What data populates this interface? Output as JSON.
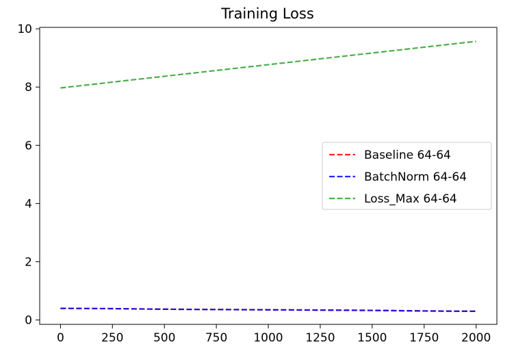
{
  "chart_data": {
    "type": "line",
    "title": "Training Loss",
    "xlabel": "",
    "ylabel": "",
    "xlim": [
      -100,
      2100
    ],
    "ylim": [
      -0.15,
      10.05
    ],
    "xticks": [
      0,
      250,
      500,
      750,
      1000,
      1250,
      1500,
      1750,
      2000
    ],
    "yticks": [
      0,
      2,
      4,
      6,
      8,
      10
    ],
    "grid": false,
    "legend_position": "center-right",
    "series": [
      {
        "name": "Baseline 64-64",
        "color": "#ff0000",
        "style": "dashed",
        "x": [
          0,
          250,
          500,
          750,
          1000,
          1250,
          1500,
          1750,
          2000
        ],
        "y": [
          0.4,
          0.39,
          0.37,
          0.36,
          0.35,
          0.34,
          0.33,
          0.31,
          0.3
        ]
      },
      {
        "name": "BatchNorm 64-64",
        "color": "#0000ff",
        "style": "dashed",
        "x": [
          0,
          250,
          500,
          750,
          1000,
          1250,
          1500,
          1750,
          2000
        ],
        "y": [
          0.4,
          0.39,
          0.37,
          0.36,
          0.35,
          0.34,
          0.33,
          0.31,
          0.3
        ]
      },
      {
        "name": "Loss_Max 64-64",
        "color": "#2ca02c",
        "style": "dashed",
        "x": [
          0,
          250,
          500,
          750,
          1000,
          1250,
          1500,
          1750,
          2000
        ],
        "y": [
          7.97,
          8.17,
          8.37,
          8.57,
          8.77,
          8.97,
          9.17,
          9.37,
          9.57
        ]
      }
    ]
  }
}
